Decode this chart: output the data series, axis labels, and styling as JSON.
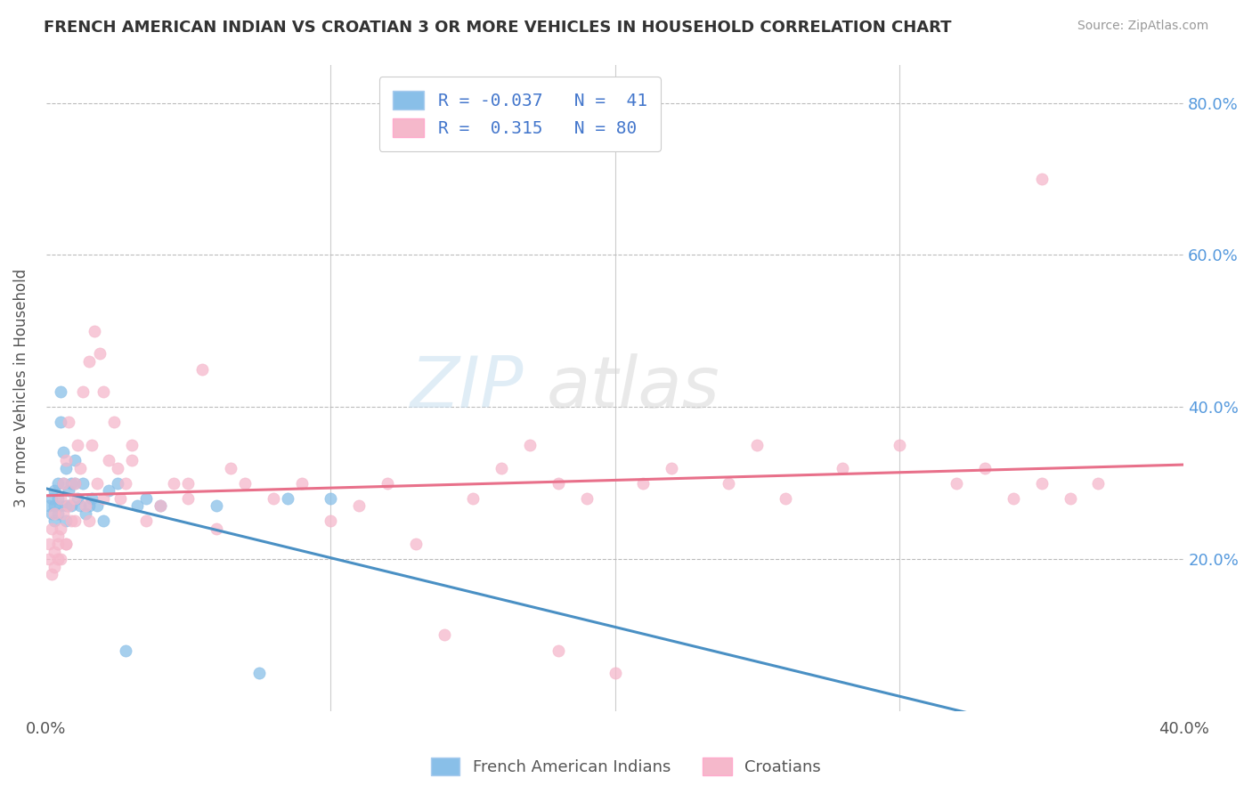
{
  "title": "FRENCH AMERICAN INDIAN VS CROATIAN 3 OR MORE VEHICLES IN HOUSEHOLD CORRELATION CHART",
  "source": "Source: ZipAtlas.com",
  "ylabel": "3 or more Vehicles in Household",
  "xmin": 0.0,
  "xmax": 0.4,
  "ymin": 0.0,
  "ymax": 0.85,
  "color_blue": "#89bfe8",
  "color_pink": "#f5b8cb",
  "line_blue": "#4a90c4",
  "line_pink": "#e8708a",
  "background": "#ffffff",
  "french_indian_x": [
    0.001,
    0.002,
    0.002,
    0.003,
    0.003,
    0.003,
    0.004,
    0.004,
    0.004,
    0.005,
    0.005,
    0.005,
    0.006,
    0.006,
    0.007,
    0.007,
    0.007,
    0.008,
    0.008,
    0.009,
    0.009,
    0.01,
    0.01,
    0.011,
    0.012,
    0.013,
    0.014,
    0.015,
    0.016,
    0.018,
    0.02,
    0.022,
    0.025,
    0.028,
    0.032,
    0.035,
    0.04,
    0.06,
    0.075,
    0.085,
    0.1
  ],
  "french_indian_y": [
    0.27,
    0.26,
    0.28,
    0.25,
    0.27,
    0.29,
    0.26,
    0.28,
    0.3,
    0.38,
    0.42,
    0.27,
    0.3,
    0.34,
    0.25,
    0.27,
    0.32,
    0.27,
    0.29,
    0.27,
    0.3,
    0.3,
    0.33,
    0.28,
    0.27,
    0.3,
    0.26,
    0.27,
    0.28,
    0.27,
    0.25,
    0.29,
    0.3,
    0.08,
    0.27,
    0.28,
    0.27,
    0.27,
    0.05,
    0.28,
    0.28
  ],
  "croatian_x": [
    0.001,
    0.001,
    0.002,
    0.002,
    0.003,
    0.003,
    0.003,
    0.004,
    0.004,
    0.005,
    0.005,
    0.005,
    0.006,
    0.006,
    0.007,
    0.007,
    0.008,
    0.008,
    0.009,
    0.01,
    0.01,
    0.011,
    0.012,
    0.013,
    0.014,
    0.015,
    0.016,
    0.017,
    0.018,
    0.019,
    0.02,
    0.022,
    0.024,
    0.026,
    0.028,
    0.03,
    0.035,
    0.04,
    0.045,
    0.05,
    0.055,
    0.06,
    0.065,
    0.07,
    0.08,
    0.09,
    0.1,
    0.11,
    0.12,
    0.13,
    0.14,
    0.15,
    0.16,
    0.17,
    0.18,
    0.19,
    0.2,
    0.21,
    0.22,
    0.24,
    0.25,
    0.26,
    0.28,
    0.3,
    0.32,
    0.33,
    0.34,
    0.35,
    0.36,
    0.37,
    0.004,
    0.007,
    0.01,
    0.015,
    0.02,
    0.025,
    0.03,
    0.05,
    0.18,
    0.35
  ],
  "croatian_y": [
    0.22,
    0.2,
    0.18,
    0.24,
    0.21,
    0.26,
    0.19,
    0.23,
    0.22,
    0.2,
    0.24,
    0.28,
    0.26,
    0.3,
    0.22,
    0.33,
    0.27,
    0.38,
    0.25,
    0.3,
    0.28,
    0.35,
    0.32,
    0.42,
    0.27,
    0.46,
    0.35,
    0.5,
    0.3,
    0.47,
    0.42,
    0.33,
    0.38,
    0.28,
    0.3,
    0.35,
    0.25,
    0.27,
    0.3,
    0.28,
    0.45,
    0.24,
    0.32,
    0.3,
    0.28,
    0.3,
    0.25,
    0.27,
    0.3,
    0.22,
    0.1,
    0.28,
    0.32,
    0.35,
    0.3,
    0.28,
    0.05,
    0.3,
    0.32,
    0.3,
    0.35,
    0.28,
    0.32,
    0.35,
    0.3,
    0.32,
    0.28,
    0.3,
    0.28,
    0.3,
    0.2,
    0.22,
    0.25,
    0.25,
    0.28,
    0.32,
    0.33,
    0.3,
    0.08,
    0.7
  ]
}
